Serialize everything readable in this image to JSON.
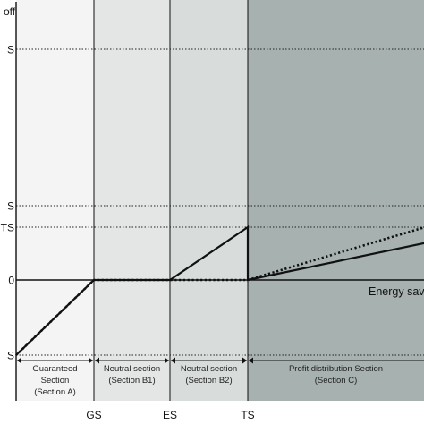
{
  "chart_data": {
    "type": "line",
    "y_axis_title": "off",
    "x_axis_title": "Energy sav",
    "x_ticks": [
      "GS",
      "ES",
      "TS"
    ],
    "x_values": {
      "GS": 1,
      "ES": 2,
      "TS": 3,
      "end": 5.1
    },
    "y_ticks": [
      "S",
      "S",
      "TS",
      "0",
      "S"
    ],
    "y_values": {
      "top_level": 7.5,
      "upper_level": 2.2,
      "TS_level": 1.7,
      "zero": 0,
      "bottom_level": -2.4
    },
    "xlim": [
      0,
      5.1
    ],
    "ylim": [
      -3.3,
      8.5
    ],
    "sections": [
      {
        "line1": "Guaranteed",
        "line2": "Section",
        "line3": "(Section A)",
        "from": 0,
        "to": 1,
        "color": "#f4f4f4"
      },
      {
        "line1": "Neutral section",
        "line2": "(Section B1)",
        "line3": "",
        "from": 1,
        "to": 2,
        "color": "#e3e6e5"
      },
      {
        "line1": "Neutral section",
        "line2": "(Section B2)",
        "line3": "",
        "from": 2,
        "to": 3,
        "color": "#d8dddc"
      },
      {
        "line1": "Profit distribution Section",
        "line2": "(Section C)",
        "line3": "",
        "from": 3,
        "to": 5.1,
        "color": "#a7b1b0"
      }
    ],
    "series": [
      {
        "style": "solid",
        "points": [
          [
            0,
            -2.4
          ],
          [
            1,
            0
          ],
          [
            2,
            0
          ],
          [
            3,
            1.7
          ],
          [
            3,
            0
          ],
          [
            5.1,
            1.2
          ]
        ]
      },
      {
        "style": "dotted",
        "points": [
          [
            0,
            -2.4
          ],
          [
            1,
            0
          ],
          [
            3,
            0
          ],
          [
            5.1,
            1.7
          ]
        ]
      }
    ],
    "grid": "dotted horizontal at y ticks",
    "legend": "none"
  }
}
